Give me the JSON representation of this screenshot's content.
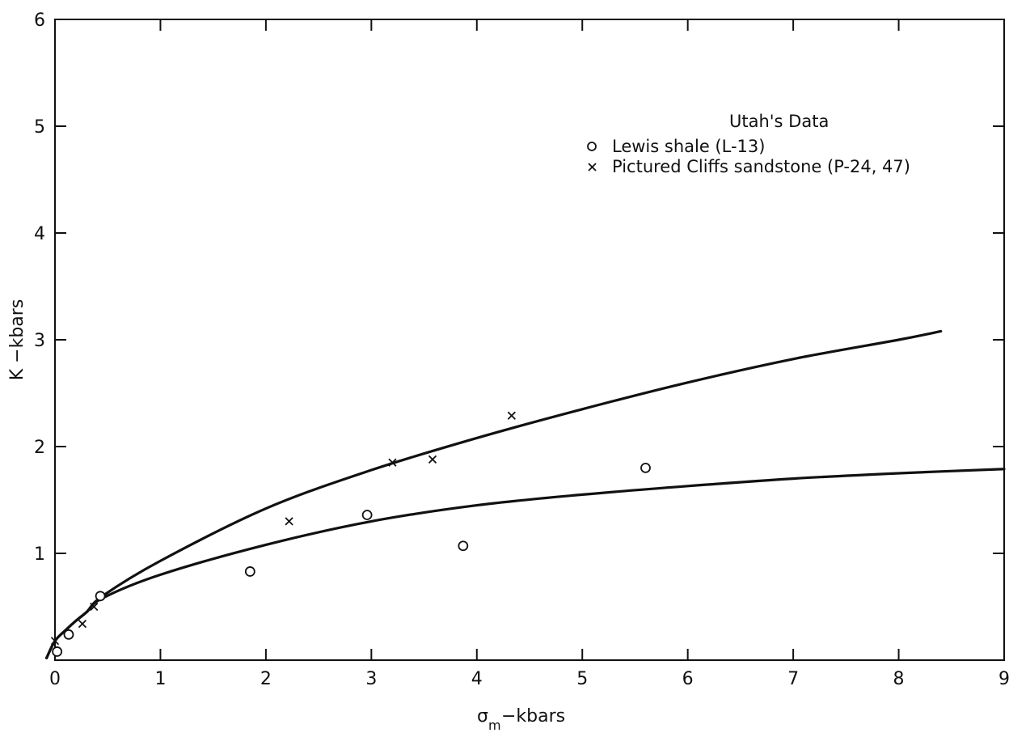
{
  "chart_data": {
    "type": "scatter",
    "title": "",
    "xlabel": {
      "symbol": "σ",
      "subscript": "m",
      "suffix": "−kbars"
    },
    "ylabel": "K −kbars",
    "xlim": [
      0,
      9
    ],
    "ylim": [
      0,
      6
    ],
    "x_ticks": [
      0,
      1,
      2,
      3,
      4,
      5,
      6,
      7,
      8,
      9
    ],
    "y_ticks": [
      1,
      2,
      3,
      4,
      5,
      6
    ],
    "x_tick_labels": [
      "0",
      "1",
      "2",
      "3",
      "4",
      "5",
      "6",
      "7",
      "8",
      "9"
    ],
    "y_tick_labels": [
      "1",
      "2",
      "3",
      "4",
      "5",
      "6"
    ],
    "grid": false,
    "legend": {
      "title": "Utah's Data",
      "placement": "top-right",
      "entries": [
        {
          "marker": "circle",
          "label": "Lewis shale (L-13)"
        },
        {
          "marker": "x",
          "label": "Pictured Cliffs sandstone (P-24, 47)"
        }
      ]
    },
    "series": [
      {
        "name": "Lewis shale (L-13)",
        "marker": "circle",
        "points": [
          {
            "x": 0.02,
            "y": 0.08
          },
          {
            "x": 0.13,
            "y": 0.24
          },
          {
            "x": 0.43,
            "y": 0.6
          },
          {
            "x": 1.85,
            "y": 0.83
          },
          {
            "x": 2.96,
            "y": 1.36
          },
          {
            "x": 3.87,
            "y": 1.07
          },
          {
            "x": 5.6,
            "y": 1.8
          }
        ]
      },
      {
        "name": "Pictured Cliffs sandstone (P-24, 47)",
        "marker": "x",
        "points": [
          {
            "x": 0.0,
            "y": 0.18
          },
          {
            "x": 0.26,
            "y": 0.34
          },
          {
            "x": 0.37,
            "y": 0.5
          },
          {
            "x": 2.22,
            "y": 1.3
          },
          {
            "x": 3.2,
            "y": 1.85
          },
          {
            "x": 3.58,
            "y": 1.88
          },
          {
            "x": 4.33,
            "y": 2.29
          }
        ]
      }
    ],
    "curves": [
      {
        "fit_for": "Pictured Cliffs sandstone (P-24, 47)",
        "points": [
          [
            -0.08,
            0.02
          ],
          [
            0.0,
            0.18
          ],
          [
            0.1,
            0.28
          ],
          [
            0.2,
            0.37
          ],
          [
            0.3,
            0.45
          ],
          [
            0.45,
            0.6
          ],
          [
            1,
            0.93
          ],
          [
            2,
            1.42
          ],
          [
            3,
            1.78
          ],
          [
            4,
            2.08
          ],
          [
            5,
            2.35
          ],
          [
            6,
            2.6
          ],
          [
            7,
            2.82
          ],
          [
            8,
            3.0
          ],
          [
            8.4,
            3.08
          ]
        ]
      },
      {
        "fit_for": "Lewis shale (L-13)",
        "points": [
          [
            -0.08,
            0.02
          ],
          [
            0.0,
            0.18
          ],
          [
            0.1,
            0.28
          ],
          [
            0.2,
            0.37
          ],
          [
            0.3,
            0.45
          ],
          [
            0.45,
            0.58
          ],
          [
            1,
            0.8
          ],
          [
            2,
            1.08
          ],
          [
            3,
            1.3
          ],
          [
            4,
            1.45
          ],
          [
            5,
            1.55
          ],
          [
            6,
            1.63
          ],
          [
            7,
            1.7
          ],
          [
            8,
            1.75
          ],
          [
            9,
            1.79
          ]
        ]
      }
    ]
  }
}
